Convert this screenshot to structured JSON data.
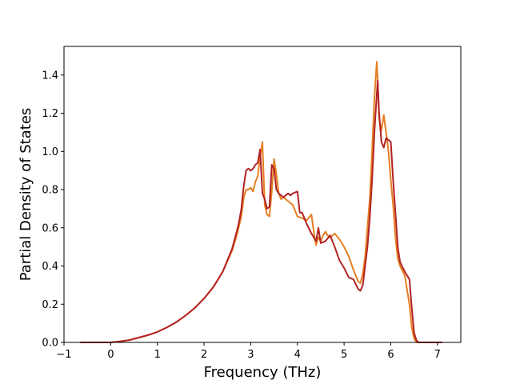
{
  "chart_data": {
    "type": "line",
    "title": "",
    "xlabel": "Frequency (THz)",
    "ylabel": "Partial Density of States",
    "xlim": [
      -1.0,
      7.5
    ],
    "ylim": [
      0.0,
      1.55
    ],
    "xticks": [
      -1,
      0,
      1,
      2,
      3,
      4,
      5,
      6,
      7
    ],
    "yticks": [
      0.0,
      0.2,
      0.4,
      0.6,
      0.8,
      1.0,
      1.2,
      1.4
    ],
    "ytick_labels": [
      "0.0",
      "0.2",
      "0.4",
      "0.6",
      "0.8",
      "1.0",
      "1.2",
      "1.4"
    ],
    "grid": false,
    "legend": "none",
    "series": [
      {
        "color": "#e67e22",
        "x": [
          -0.65,
          -0.3,
          0.0,
          0.2,
          0.4,
          0.6,
          0.8,
          1.0,
          1.2,
          1.4,
          1.6,
          1.8,
          2.0,
          2.2,
          2.4,
          2.6,
          2.7,
          2.8,
          2.85,
          2.9,
          2.95,
          3.0,
          3.05,
          3.1,
          3.15,
          3.2,
          3.25,
          3.3,
          3.35,
          3.4,
          3.45,
          3.5,
          3.55,
          3.6,
          3.65,
          3.7,
          3.8,
          3.9,
          4.0,
          4.1,
          4.2,
          4.3,
          4.35,
          4.4,
          4.45,
          4.5,
          4.55,
          4.6,
          4.65,
          4.7,
          4.8,
          4.9,
          5.0,
          5.1,
          5.2,
          5.3,
          5.35,
          5.4,
          5.45,
          5.5,
          5.55,
          5.6,
          5.65,
          5.7,
          5.72,
          5.75,
          5.8,
          5.85,
          5.9,
          5.95,
          6.0,
          6.05,
          6.1,
          6.15,
          6.2,
          6.3,
          6.4,
          6.45,
          6.5,
          6.55,
          6.6,
          6.8,
          7.1
        ],
        "y": [
          0.0,
          0.0,
          0.0,
          0.005,
          0.012,
          0.025,
          0.038,
          0.055,
          0.078,
          0.105,
          0.14,
          0.18,
          0.23,
          0.29,
          0.37,
          0.48,
          0.56,
          0.66,
          0.76,
          0.8,
          0.8,
          0.81,
          0.79,
          0.84,
          0.87,
          0.97,
          1.05,
          0.72,
          0.67,
          0.66,
          0.79,
          0.96,
          0.88,
          0.78,
          0.75,
          0.76,
          0.74,
          0.72,
          0.66,
          0.65,
          0.64,
          0.67,
          0.58,
          0.51,
          0.55,
          0.53,
          0.56,
          0.58,
          0.56,
          0.55,
          0.57,
          0.54,
          0.5,
          0.45,
          0.38,
          0.32,
          0.31,
          0.36,
          0.45,
          0.6,
          0.75,
          1.0,
          1.28,
          1.47,
          1.37,
          1.17,
          1.11,
          1.19,
          1.1,
          1.0,
          0.85,
          0.72,
          0.55,
          0.44,
          0.4,
          0.35,
          0.2,
          0.08,
          0.02,
          0.0,
          0.0,
          0.0,
          0.0
        ]
      },
      {
        "color": "#b22222",
        "x": [
          -0.65,
          -0.3,
          0.0,
          0.2,
          0.4,
          0.6,
          0.8,
          1.0,
          1.2,
          1.4,
          1.6,
          1.8,
          2.0,
          2.2,
          2.4,
          2.6,
          2.7,
          2.75,
          2.8,
          2.85,
          2.9,
          2.95,
          3.0,
          3.05,
          3.1,
          3.15,
          3.2,
          3.25,
          3.3,
          3.35,
          3.4,
          3.45,
          3.5,
          3.55,
          3.6,
          3.7,
          3.8,
          3.85,
          3.9,
          4.0,
          4.05,
          4.1,
          4.2,
          4.3,
          4.4,
          4.45,
          4.5,
          4.6,
          4.7,
          4.8,
          4.9,
          5.0,
          5.1,
          5.2,
          5.3,
          5.35,
          5.4,
          5.45,
          5.5,
          5.55,
          5.6,
          5.65,
          5.7,
          5.72,
          5.75,
          5.8,
          5.85,
          5.9,
          5.95,
          6.0,
          6.05,
          6.1,
          6.15,
          6.2,
          6.3,
          6.4,
          6.45,
          6.5,
          6.55,
          6.6,
          6.8,
          7.1
        ],
        "y": [
          0.0,
          0.0,
          0.0,
          0.005,
          0.012,
          0.025,
          0.038,
          0.055,
          0.078,
          0.105,
          0.14,
          0.18,
          0.23,
          0.29,
          0.37,
          0.49,
          0.58,
          0.63,
          0.7,
          0.82,
          0.9,
          0.91,
          0.9,
          0.91,
          0.93,
          0.94,
          1.01,
          0.78,
          0.75,
          0.7,
          0.71,
          0.93,
          0.91,
          0.8,
          0.78,
          0.76,
          0.78,
          0.77,
          0.78,
          0.79,
          0.68,
          0.68,
          0.62,
          0.57,
          0.53,
          0.6,
          0.52,
          0.53,
          0.56,
          0.5,
          0.43,
          0.39,
          0.34,
          0.33,
          0.28,
          0.27,
          0.3,
          0.4,
          0.5,
          0.65,
          0.85,
          1.1,
          1.3,
          1.37,
          1.2,
          1.05,
          1.02,
          1.07,
          1.06,
          1.05,
          0.85,
          0.68,
          0.5,
          0.42,
          0.37,
          0.33,
          0.18,
          0.05,
          0.01,
          0.0,
          0.0,
          0.0
        ]
      }
    ]
  }
}
